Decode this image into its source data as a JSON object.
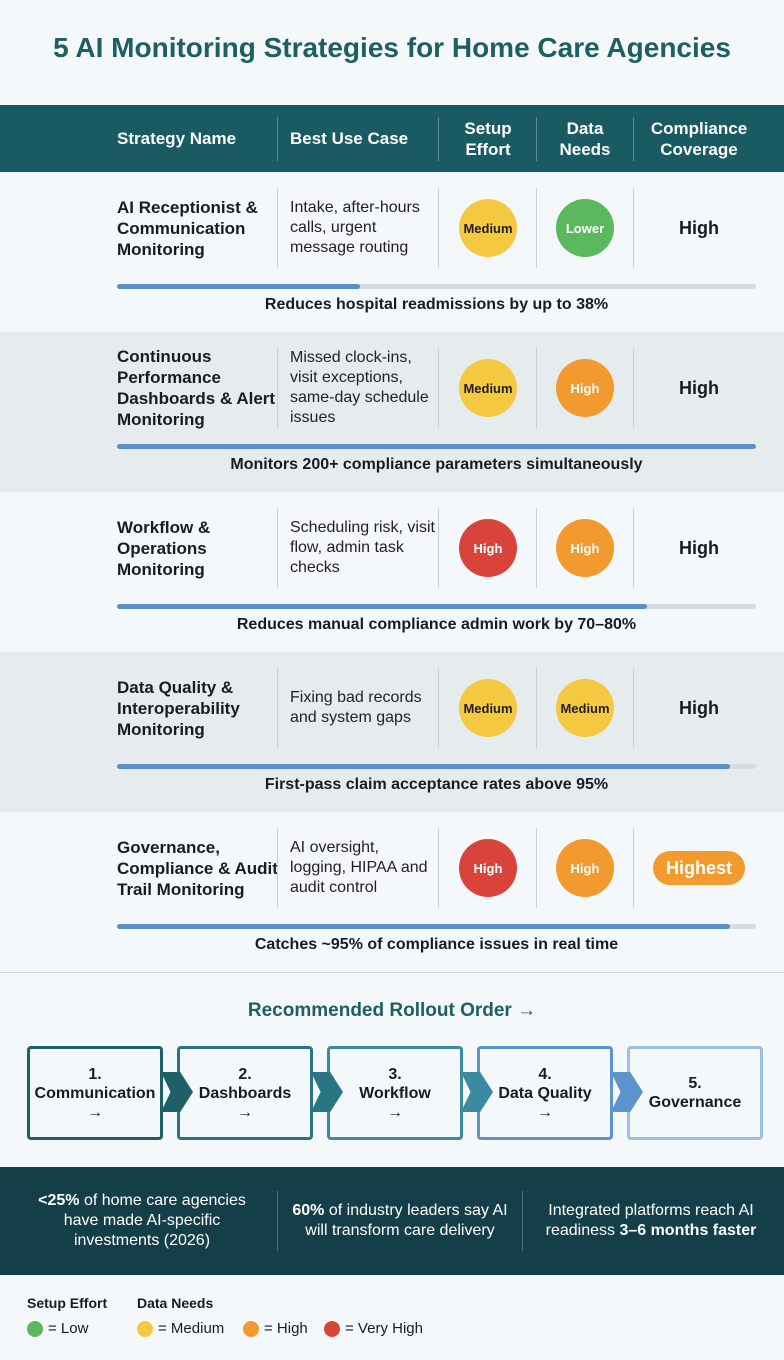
{
  "title": "5 AI Monitoring Strategies for Home Care Agencies",
  "table": {
    "headers": [
      "Strategy Name",
      "Best Use Case",
      "Setup Effort",
      "Data Needs",
      "Compliance Coverage"
    ],
    "rows": [
      {
        "name": "AI Receptionist & Communication Monitoring",
        "use_case": "Intake, after-hours calls, urgent message routing",
        "setup": "Medium",
        "data": "Lower",
        "coverage": "High",
        "note": "Reduces hospital readmissions by up to 38%",
        "progress": 38
      },
      {
        "name": "Continuous Performance Dashboards & Alert Monitoring",
        "use_case": "Missed clock-ins, visit exceptions, same-day schedule issues",
        "setup": "Medium",
        "data": "High",
        "coverage": "High",
        "note": "Monitors 200+ compliance parameters simultaneously",
        "progress": 100
      },
      {
        "name": "Workflow & Operations Monitoring",
        "use_case": "Scheduling risk, visit flow, admin task checks",
        "setup": "High",
        "data": "High",
        "coverage": "High",
        "note": "Reduces manual compliance admin work by 70–80%",
        "progress": 83
      },
      {
        "name": "Data Quality & Interoperability Monitoring",
        "use_case": "Fixing bad records and system gaps",
        "setup": "Medium",
        "data": "Medium",
        "coverage": "High",
        "note": "First-pass claim acceptance rates above 95%",
        "progress": 96
      },
      {
        "name": "Governance, Compliance & Audit Trail Monitoring",
        "use_case": "AI oversight, logging, HIPAA and audit control",
        "setup": "High",
        "data": "High",
        "coverage": "Highest",
        "note": "Catches ~95% of compliance issues in real time",
        "progress": 96
      }
    ],
    "badge_colors": {
      "Lower": "#5cb85c",
      "Medium": "#f5c842",
      "High": "#f39a2e",
      "Very High": "#d9443a"
    },
    "setup_colors": {
      "Medium": "#f5c842",
      "High": "#d9443a"
    }
  },
  "rollout": {
    "title": "Recommended Rollout Order →",
    "steps": [
      {
        "number": "1.",
        "name": "Communication",
        "arrow": "→",
        "color": "#1f5f68"
      },
      {
        "number": "2.",
        "name": "Dashboards",
        "arrow": "→",
        "color": "#2a7584"
      },
      {
        "number": "3.",
        "name": "Workflow",
        "arrow": "→",
        "color": "#3a8aa0"
      },
      {
        "number": "4.",
        "name": "Data Quality",
        "arrow": "→",
        "color": "#5b94cc"
      },
      {
        "number": "5.",
        "name": "Governance",
        "color": "#9cc1e0"
      }
    ]
  },
  "stats": [
    {
      "bold": "<25%",
      "after": "of home care agencies have made AI-specific investments (2026)"
    },
    {
      "bold": "60%",
      "after": "of industry leaders say AI will transform care delivery"
    },
    {
      "before": "Integrated platforms reach AI readiness",
      "bold": "3–6 months faster"
    }
  ],
  "legend": {
    "setup_title": "Setup Effort",
    "data_title": "Data Needs",
    "items": [
      {
        "color": "#5cb85c",
        "label": "= Low"
      },
      {
        "color": "#f5c842",
        "label": "= Medium"
      },
      {
        "color": "#f39a2e",
        "label": "= High"
      },
      {
        "color": "#d9443a",
        "label": "= Very High"
      }
    ]
  }
}
